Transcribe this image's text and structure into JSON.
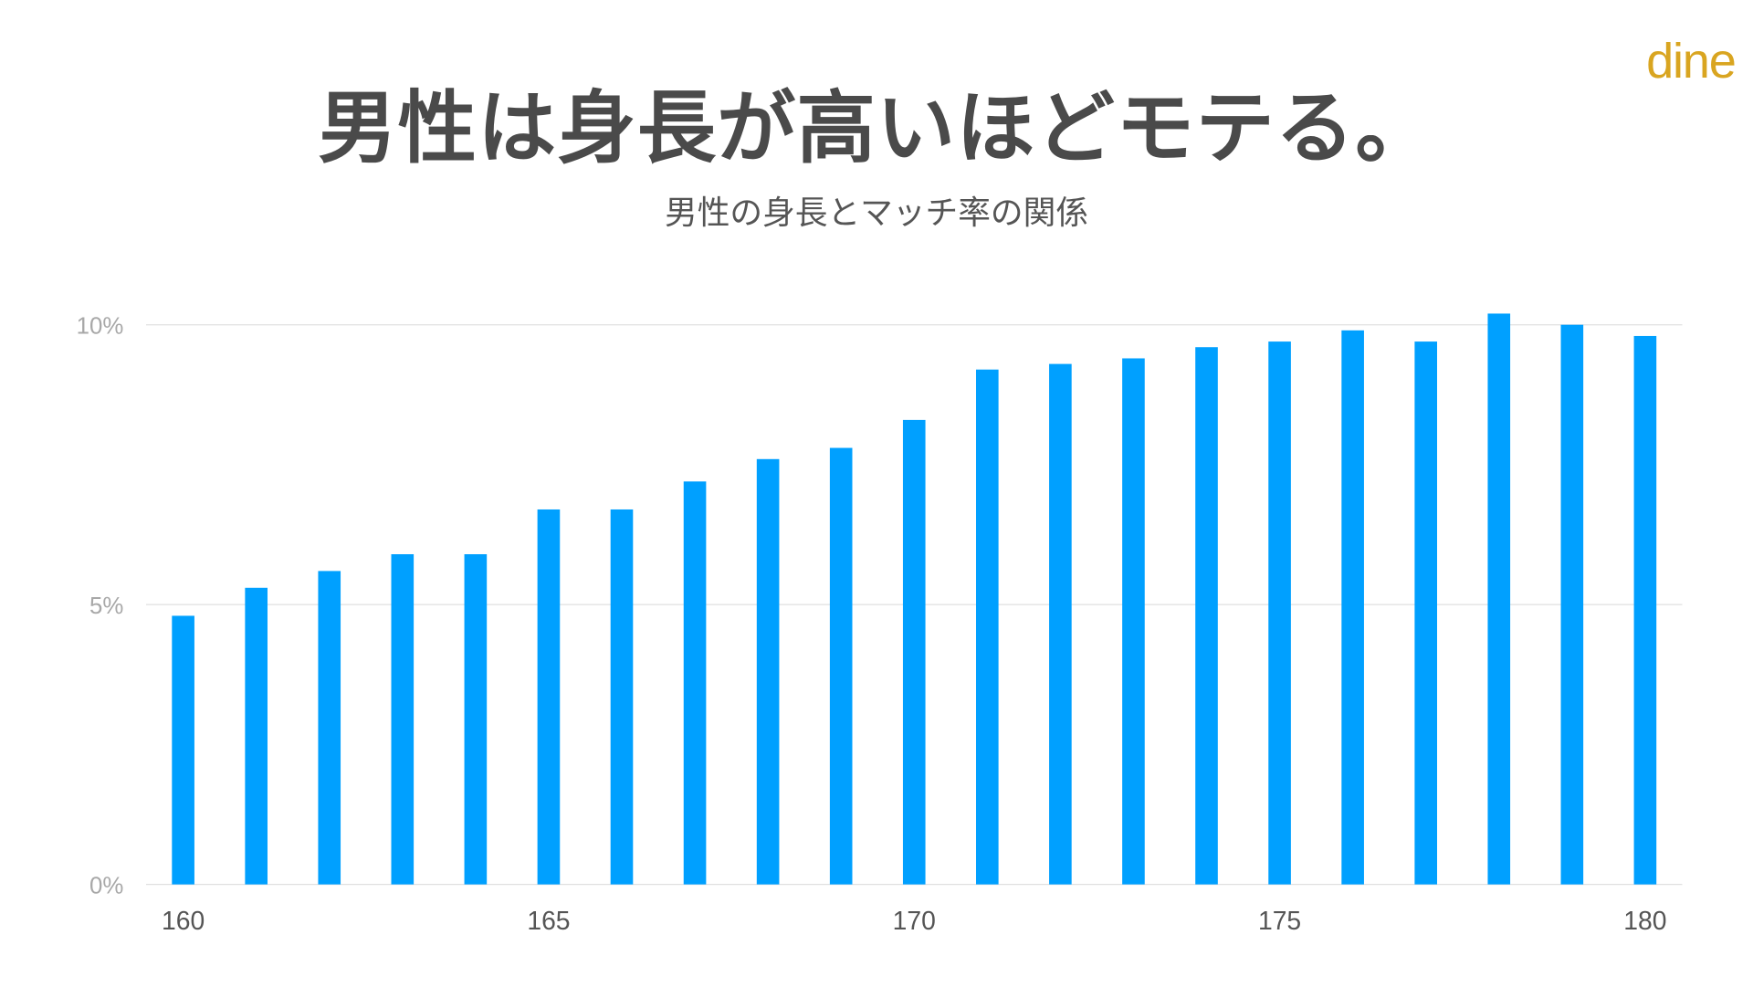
{
  "title": "男性は身長が高いほどモテる。",
  "logo": "dine",
  "colors": {
    "bar": "#00a0ff",
    "logo": "#d9a520",
    "grid": "#e0e0e0"
  },
  "chart_data": {
    "type": "bar",
    "title": "男性の身長とマッチ率の関係",
    "xlabel": "",
    "ylabel": "",
    "categories": [
      160,
      161,
      162,
      163,
      164,
      165,
      166,
      167,
      168,
      169,
      170,
      171,
      172,
      173,
      174,
      175,
      176,
      177,
      178,
      179,
      180
    ],
    "values": [
      4.8,
      5.3,
      5.6,
      5.9,
      5.9,
      6.7,
      6.7,
      7.2,
      7.6,
      7.8,
      8.3,
      9.2,
      9.3,
      9.4,
      9.6,
      9.7,
      9.9,
      9.7,
      10.2,
      10.0,
      9.8
    ],
    "ylim": [
      0,
      10.2
    ],
    "y_ticks": [
      "0%",
      "5%",
      "10%"
    ],
    "y_tick_values": [
      0,
      5,
      10
    ],
    "x_ticks": [
      "160",
      "165",
      "170",
      "175",
      "180"
    ],
    "x_tick_values": [
      160,
      165,
      170,
      175,
      180
    ],
    "grid": true,
    "legend": "none"
  }
}
